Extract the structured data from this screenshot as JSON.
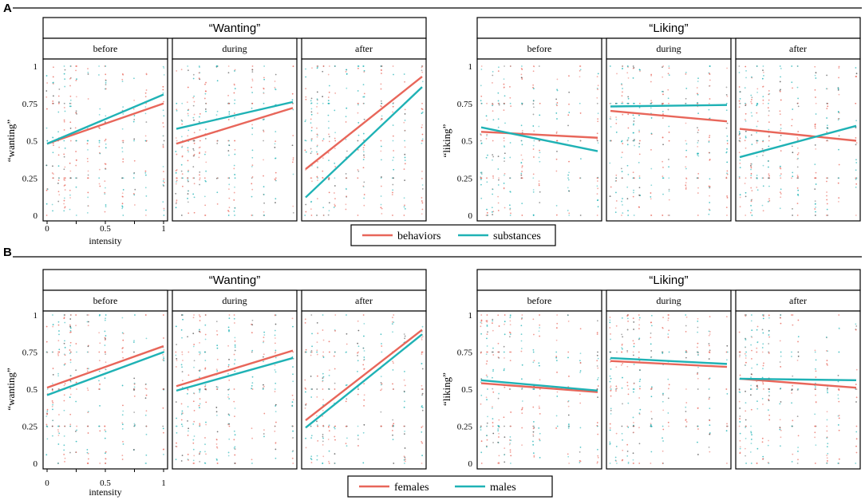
{
  "colors": {
    "line_a": "#e8665a",
    "line_b": "#1fb2b5",
    "frame": "#000000",
    "background": "#ffffff"
  },
  "chart_data": [
    {
      "panel": "A",
      "type": "scatter",
      "legend": {
        "placement": "bottom-center",
        "entries": [
          "behaviors",
          "substances"
        ]
      },
      "groups": [
        {
          "title": "“Wanting”",
          "ylabel": "“wanting”",
          "xlabel": "intensity",
          "xlim": [
            0,
            1
          ],
          "ylim": [
            0,
            1
          ],
          "yticks": [
            "0",
            "0.25",
            "0.5",
            "0.75",
            "1"
          ],
          "xticks": [
            "0",
            "0.5",
            "1"
          ],
          "facets": [
            {
              "label": "before",
              "series": [
                {
                  "name": "behaviors",
                  "y0": 0.48,
                  "y1": 0.75
                },
                {
                  "name": "substances",
                  "y0": 0.48,
                  "y1": 0.81
                }
              ]
            },
            {
              "label": "during",
              "series": [
                {
                  "name": "behaviors",
                  "y0": 0.48,
                  "y1": 0.72
                },
                {
                  "name": "substances",
                  "y0": 0.58,
                  "y1": 0.76
                }
              ]
            },
            {
              "label": "after",
              "series": [
                {
                  "name": "behaviors",
                  "y0": 0.31,
                  "y1": 0.93
                },
                {
                  "name": "substances",
                  "y0": 0.12,
                  "y1": 0.86
                }
              ]
            }
          ]
        },
        {
          "title": "“Liking”",
          "ylabel": "“liking”",
          "xlabel": "",
          "xlim": [
            0,
            1
          ],
          "ylim": [
            0,
            1
          ],
          "yticks": [
            "0",
            "0.25",
            "0.5",
            "0.75",
            "1"
          ],
          "xticks": [],
          "facets": [
            {
              "label": "before",
              "series": [
                {
                  "name": "behaviors",
                  "y0": 0.56,
                  "y1": 0.52
                },
                {
                  "name": "substances",
                  "y0": 0.59,
                  "y1": 0.43
                }
              ]
            },
            {
              "label": "during",
              "series": [
                {
                  "name": "behaviors",
                  "y0": 0.7,
                  "y1": 0.63
                },
                {
                  "name": "substances",
                  "y0": 0.73,
                  "y1": 0.74
                }
              ]
            },
            {
              "label": "after",
              "series": [
                {
                  "name": "behaviors",
                  "y0": 0.58,
                  "y1": 0.5
                },
                {
                  "name": "substances",
                  "y0": 0.39,
                  "y1": 0.6
                }
              ]
            }
          ]
        }
      ]
    },
    {
      "panel": "B",
      "type": "scatter",
      "legend": {
        "placement": "bottom-center",
        "entries": [
          "females",
          "males"
        ]
      },
      "groups": [
        {
          "title": "“Wanting”",
          "ylabel": "“wanting”",
          "xlabel": "intensity",
          "xlim": [
            0,
            1
          ],
          "ylim": [
            0,
            1
          ],
          "yticks": [
            "0",
            "0.25",
            "0.5",
            "0.75",
            "1"
          ],
          "xticks": [
            "0",
            "0.5",
            "1"
          ],
          "facets": [
            {
              "label": "before",
              "series": [
                {
                  "name": "females",
                  "y0": 0.51,
                  "y1": 0.79
                },
                {
                  "name": "males",
                  "y0": 0.46,
                  "y1": 0.75
                }
              ]
            },
            {
              "label": "during",
              "series": [
                {
                  "name": "females",
                  "y0": 0.52,
                  "y1": 0.76
                },
                {
                  "name": "males",
                  "y0": 0.49,
                  "y1": 0.71
                }
              ]
            },
            {
              "label": "after",
              "series": [
                {
                  "name": "females",
                  "y0": 0.29,
                  "y1": 0.9
                },
                {
                  "name": "males",
                  "y0": 0.24,
                  "y1": 0.87
                }
              ]
            }
          ]
        },
        {
          "title": "“Liking”",
          "ylabel": "“liking”",
          "xlabel": "",
          "xlim": [
            0,
            1
          ],
          "ylim": [
            0,
            1
          ],
          "yticks": [
            "0",
            "0.25",
            "0.5",
            "0.75",
            "1"
          ],
          "xticks": [],
          "facets": [
            {
              "label": "before",
              "series": [
                {
                  "name": "females",
                  "y0": 0.54,
                  "y1": 0.48
                },
                {
                  "name": "males",
                  "y0": 0.56,
                  "y1": 0.49
                }
              ]
            },
            {
              "label": "during",
              "series": [
                {
                  "name": "females",
                  "y0": 0.69,
                  "y1": 0.65
                },
                {
                  "name": "males",
                  "y0": 0.71,
                  "y1": 0.67
                }
              ]
            },
            {
              "label": "after",
              "series": [
                {
                  "name": "females",
                  "y0": 0.57,
                  "y1": 0.51
                },
                {
                  "name": "males",
                  "y0": 0.57,
                  "y1": 0.56
                }
              ]
            }
          ]
        }
      ]
    }
  ]
}
